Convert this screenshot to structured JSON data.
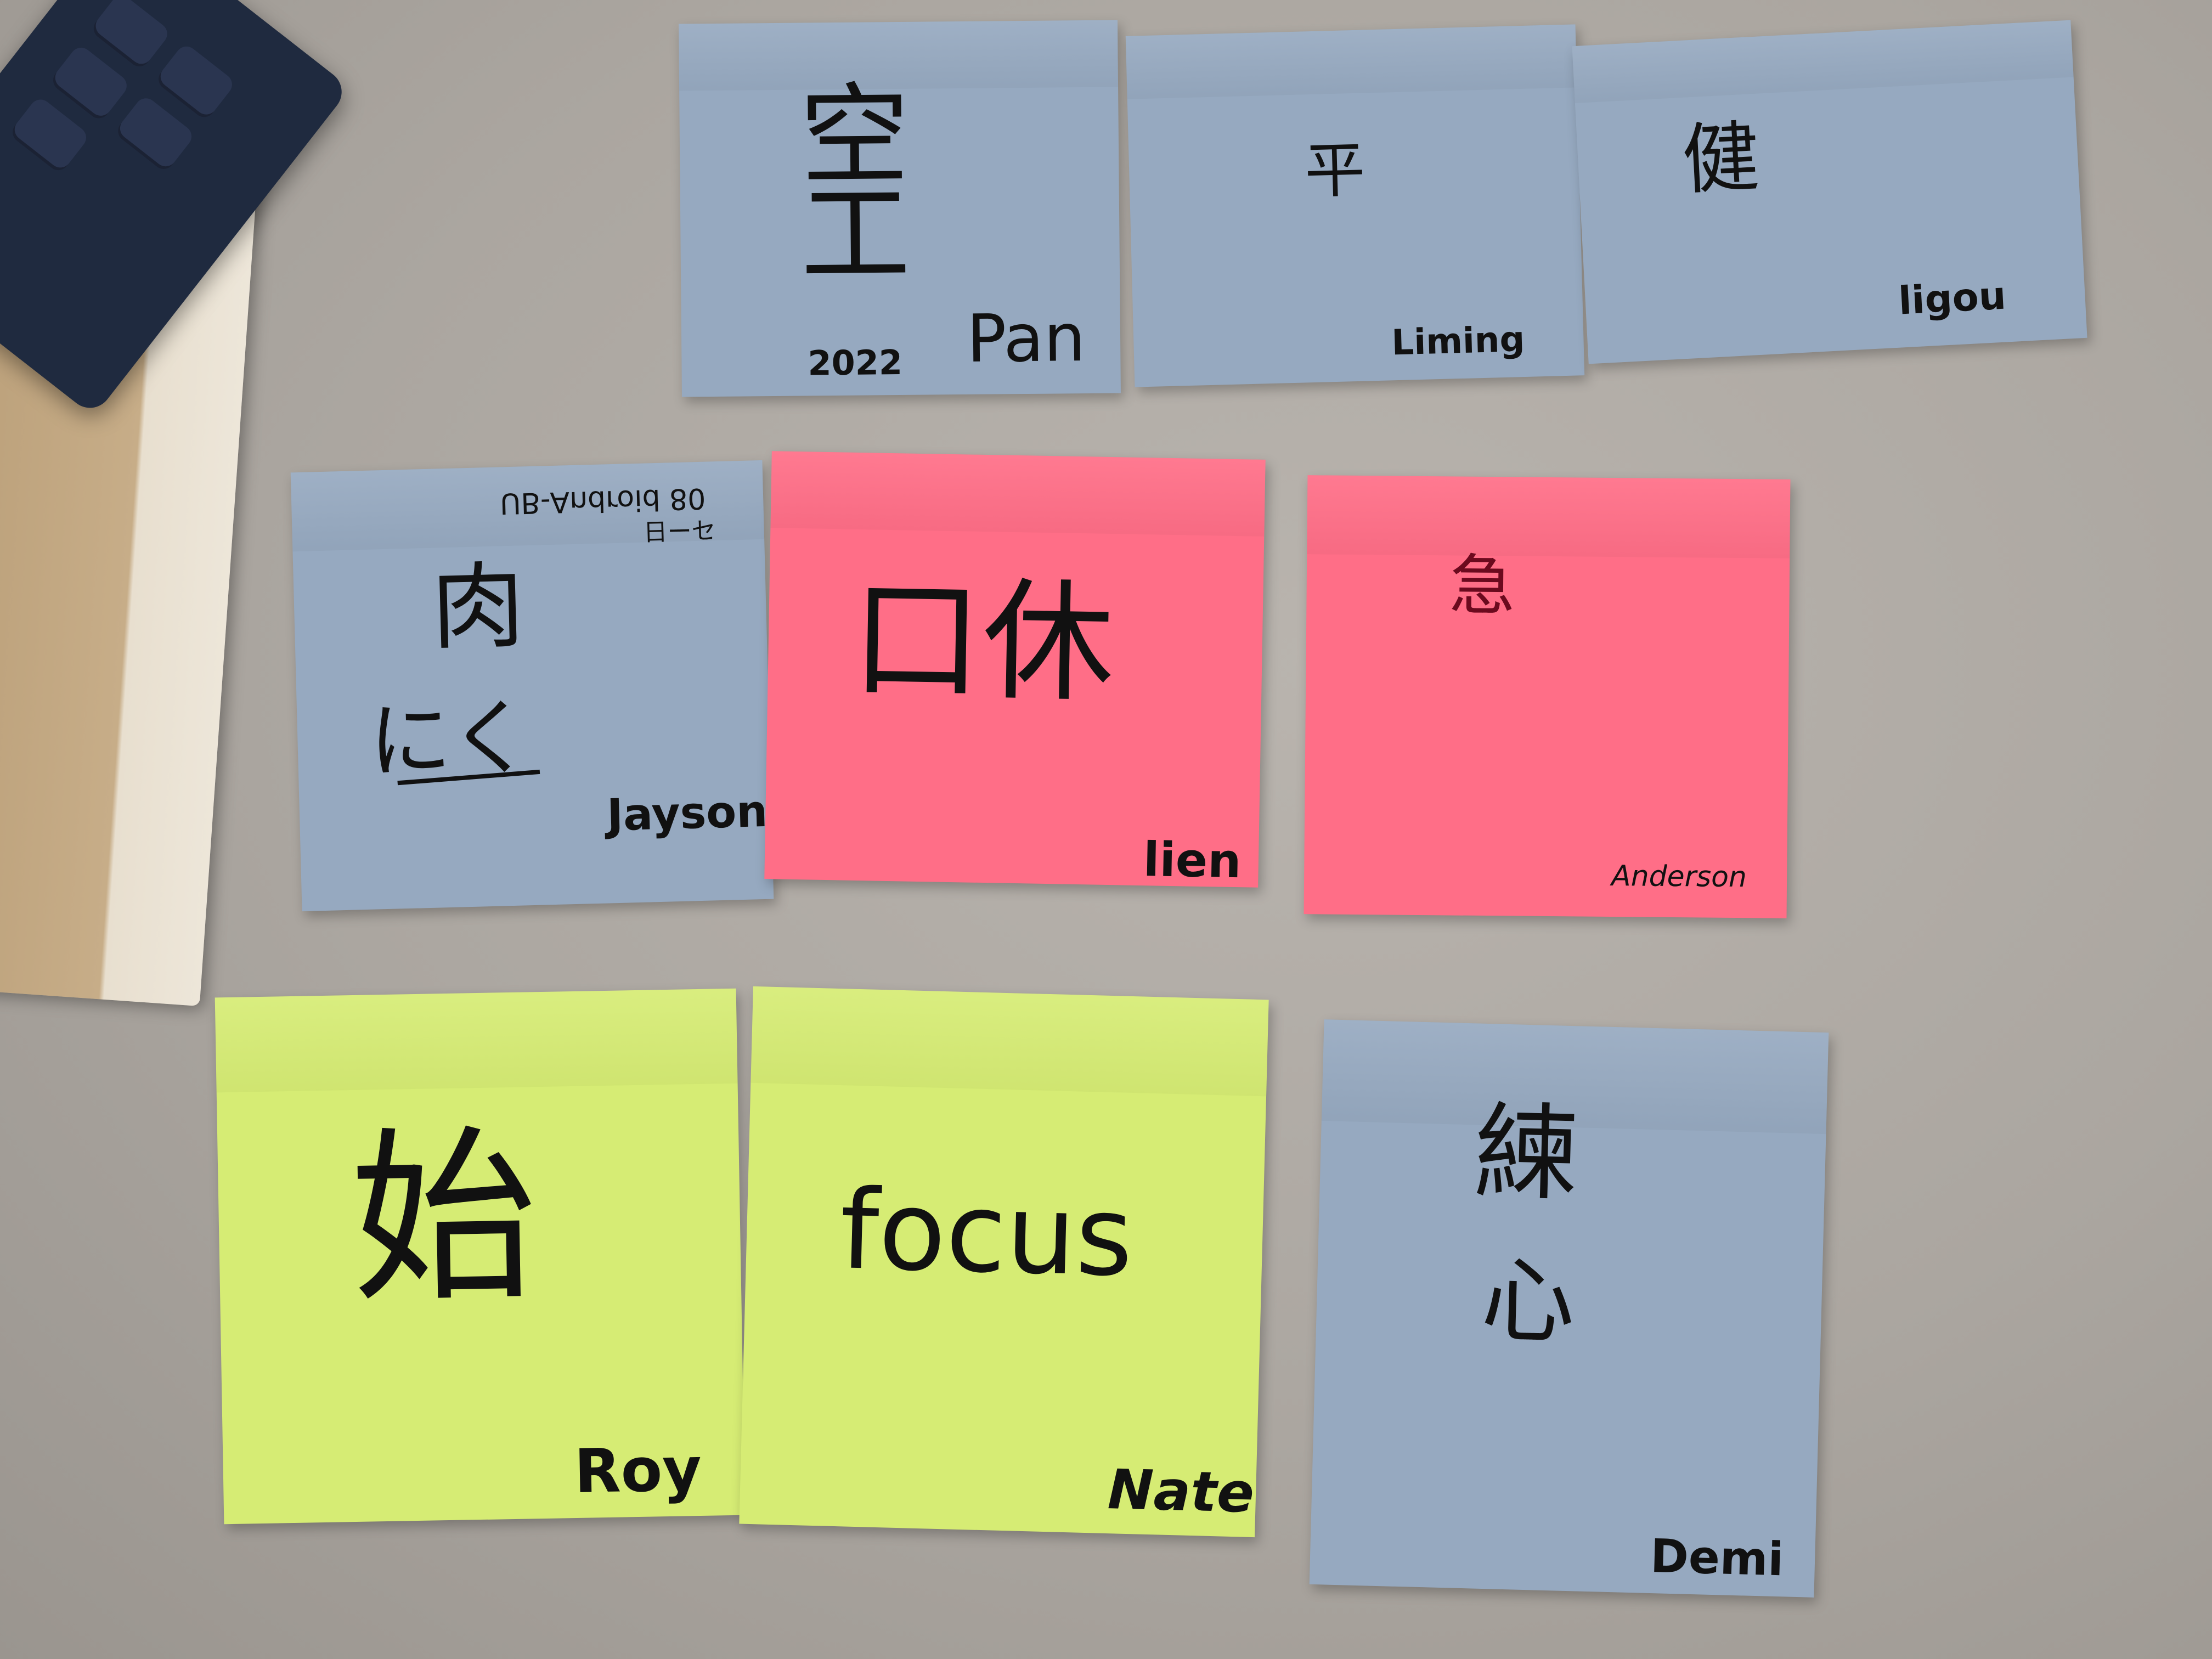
{
  "notes": [
    {
      "kanji": "空工",
      "year": "2022",
      "signature": "Pan",
      "color": "#96a9c0"
    },
    {
      "kanji": "平",
      "signature": "Liming",
      "color": "#96a9c0"
    },
    {
      "kanji": "健",
      "signature": "ligou",
      "color": "#96a9c0"
    },
    {
      "kanji": "肉",
      "reading": "にく",
      "stamp": "UB-Android 80",
      "stamp2": "日ーセ",
      "signature": "Jayson",
      "color": "#96a9c0"
    },
    {
      "kanji": "口休",
      "signature": "lien",
      "color": "#ff6e87"
    },
    {
      "kanji": "急",
      "signature": "Anderson",
      "color": "#ff6e87"
    },
    {
      "kanji": "始",
      "signature": "Roy",
      "color": "#d6ec74"
    },
    {
      "word": "focus",
      "signature": "Nate",
      "color": "#d6ec74"
    },
    {
      "kanji": "練",
      "kanji2": "心",
      "signature": "Demi",
      "color": "#96a9c0"
    }
  ]
}
